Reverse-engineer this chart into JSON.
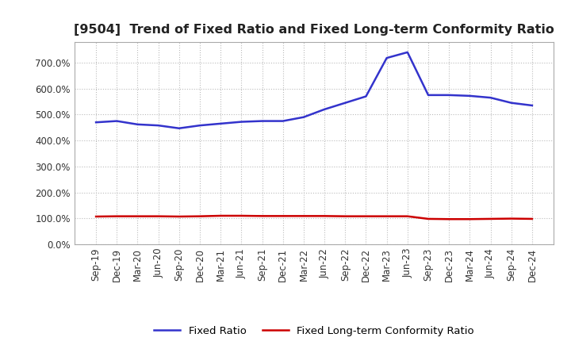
{
  "title": "[9504]  Trend of Fixed Ratio and Fixed Long-term Conformity Ratio",
  "x_labels": [
    "Sep-19",
    "Dec-19",
    "Mar-20",
    "Jun-20",
    "Sep-20",
    "Dec-20",
    "Mar-21",
    "Jun-21",
    "Sep-21",
    "Dec-21",
    "Mar-22",
    "Jun-22",
    "Sep-22",
    "Dec-22",
    "Mar-23",
    "Jun-23",
    "Sep-23",
    "Dec-23",
    "Mar-24",
    "Jun-24",
    "Sep-24",
    "Dec-24"
  ],
  "fixed_ratio": [
    470,
    475,
    462,
    458,
    447,
    458,
    465,
    472,
    475,
    475,
    490,
    520,
    545,
    570,
    718,
    740,
    575,
    575,
    572,
    565,
    545,
    535
  ],
  "fixed_lt_ratio": [
    107,
    108,
    108,
    108,
    107,
    108,
    110,
    110,
    109,
    109,
    109,
    109,
    108,
    108,
    108,
    108,
    98,
    97,
    97,
    98,
    99,
    98
  ],
  "ylim": [
    0,
    780
  ],
  "yticks": [
    0,
    100,
    200,
    300,
    400,
    500,
    600,
    700
  ],
  "line_color_fixed": "#3333CC",
  "line_color_lt": "#CC0000",
  "grid_color": "#BBBBBB",
  "bg_color": "#FFFFFF",
  "legend_fixed": "Fixed Ratio",
  "legend_lt": "Fixed Long-term Conformity Ratio",
  "title_fontsize": 11.5,
  "axis_fontsize": 8.5,
  "legend_fontsize": 9.5,
  "line_width": 1.8
}
